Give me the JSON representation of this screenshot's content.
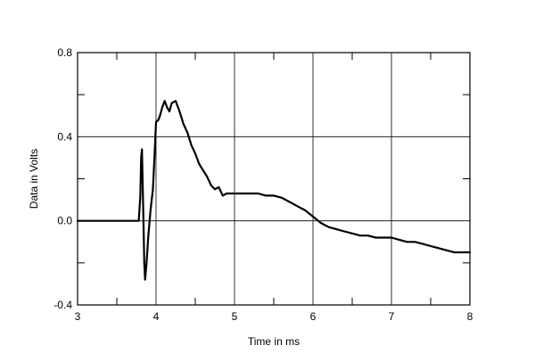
{
  "chart_data": {
    "type": "line",
    "title": "",
    "xlabel": "Time in ms",
    "ylabel": "Data in Volts",
    "xlim": [
      3,
      8
    ],
    "ylim": [
      -0.4,
      0.8
    ],
    "x_ticks": [
      3,
      4,
      5,
      6,
      7,
      8
    ],
    "y_ticks": [
      -0.4,
      0.0,
      0.4,
      0.8
    ],
    "x_tick_labels": [
      "3",
      "4",
      "5",
      "6",
      "7",
      "8"
    ],
    "y_tick_labels": [
      "-0.4",
      "0.0",
      "0.4",
      "0.8"
    ],
    "grid": true,
    "legend": "none",
    "series": [
      {
        "color": "#000000",
        "points": [
          [
            3.0,
            0.0
          ],
          [
            3.78,
            0.0
          ],
          [
            3.8,
            0.12
          ],
          [
            3.81,
            0.3
          ],
          [
            3.82,
            0.34
          ],
          [
            3.83,
            0.18
          ],
          [
            3.84,
            0.0
          ],
          [
            3.85,
            -0.2
          ],
          [
            3.86,
            -0.28
          ],
          [
            3.88,
            -0.2
          ],
          [
            3.9,
            -0.08
          ],
          [
            3.93,
            0.05
          ],
          [
            3.96,
            0.15
          ],
          [
            3.98,
            0.3
          ],
          [
            4.0,
            0.47
          ],
          [
            4.03,
            0.48
          ],
          [
            4.05,
            0.5
          ],
          [
            4.08,
            0.54
          ],
          [
            4.11,
            0.57
          ],
          [
            4.14,
            0.54
          ],
          [
            4.17,
            0.52
          ],
          [
            4.2,
            0.56
          ],
          [
            4.25,
            0.57
          ],
          [
            4.3,
            0.52
          ],
          [
            4.35,
            0.46
          ],
          [
            4.4,
            0.42
          ],
          [
            4.45,
            0.36
          ],
          [
            4.5,
            0.32
          ],
          [
            4.55,
            0.27
          ],
          [
            4.6,
            0.24
          ],
          [
            4.65,
            0.21
          ],
          [
            4.7,
            0.17
          ],
          [
            4.75,
            0.15
          ],
          [
            4.8,
            0.16
          ],
          [
            4.85,
            0.12
          ],
          [
            4.9,
            0.13
          ],
          [
            4.95,
            0.13
          ],
          [
            5.0,
            0.13
          ],
          [
            5.1,
            0.13
          ],
          [
            5.2,
            0.13
          ],
          [
            5.3,
            0.13
          ],
          [
            5.4,
            0.12
          ],
          [
            5.5,
            0.12
          ],
          [
            5.6,
            0.11
          ],
          [
            5.7,
            0.09
          ],
          [
            5.8,
            0.07
          ],
          [
            5.9,
            0.05
          ],
          [
            6.0,
            0.02
          ],
          [
            6.1,
            -0.01
          ],
          [
            6.2,
            -0.03
          ],
          [
            6.3,
            -0.04
          ],
          [
            6.4,
            -0.05
          ],
          [
            6.5,
            -0.06
          ],
          [
            6.6,
            -0.07
          ],
          [
            6.7,
            -0.07
          ],
          [
            6.8,
            -0.08
          ],
          [
            6.9,
            -0.08
          ],
          [
            7.0,
            -0.08
          ],
          [
            7.1,
            -0.09
          ],
          [
            7.2,
            -0.1
          ],
          [
            7.3,
            -0.1
          ],
          [
            7.4,
            -0.11
          ],
          [
            7.5,
            -0.12
          ],
          [
            7.6,
            -0.13
          ],
          [
            7.7,
            -0.14
          ],
          [
            7.8,
            -0.15
          ],
          [
            7.9,
            -0.15
          ],
          [
            8.0,
            -0.15
          ]
        ]
      }
    ]
  }
}
